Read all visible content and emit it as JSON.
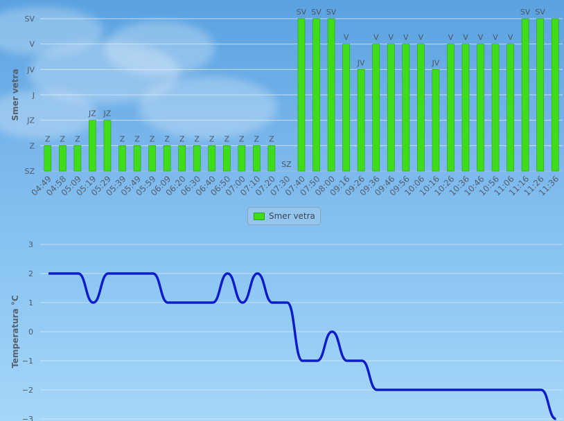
{
  "chart_data": [
    {
      "type": "bar",
      "ylabel": "Smer vetra",
      "y_categories": [
        "SZ",
        "Z",
        "JZ",
        "J",
        "JV",
        "V",
        "SV"
      ],
      "categories": [
        "04:49",
        "04:58",
        "05:09",
        "05:19",
        "05:29",
        "05:39",
        "05:49",
        "05:59",
        "06:09",
        "06:20",
        "06:30",
        "06:40",
        "06:50",
        "07:00",
        "07:10",
        "07:20",
        "07:30",
        "07:40",
        "07:50",
        "08:00",
        "09:16",
        "09:26",
        "09:36",
        "09:46",
        "09:56",
        "10:06",
        "10:16",
        "10:26",
        "10:36",
        "10:46",
        "10:56",
        "11:06",
        "11:16",
        "11:26",
        "11:36"
      ],
      "values": [
        "Z",
        "Z",
        "Z",
        "JZ",
        "JZ",
        "Z",
        "Z",
        "Z",
        "Z",
        "Z",
        "Z",
        "Z",
        "Z",
        "Z",
        "Z",
        "Z",
        "SZ",
        "SV",
        "SV",
        "SV",
        "V",
        "JV",
        "V",
        "V",
        "V",
        "V",
        "JV",
        "V",
        "V",
        "V",
        "V",
        "V",
        "SV",
        "SV",
        "SV"
      ],
      "data_labels": [
        "Z",
        "Z",
        "Z",
        "JZ",
        "JZ",
        "Z",
        "Z",
        "Z",
        "Z",
        "Z",
        "Z",
        "Z",
        "Z",
        "Z",
        "Z",
        "Z",
        "SZ",
        "SV",
        "SV",
        "SV",
        "V",
        "JV",
        "V",
        "V",
        "V",
        "V",
        "JV",
        "V",
        "V",
        "V",
        "V",
        "V",
        "SV",
        "SV",
        ""
      ],
      "legend": [
        "Smer vetra"
      ],
      "legend_position": "bottom-center",
      "bar_color": "#3fdc1a",
      "grid": true
    },
    {
      "type": "line",
      "ylabel": "Temperatura °C",
      "y_ticks": [
        "3",
        "2",
        "1",
        "0",
        "−1",
        "−2",
        "−3"
      ],
      "ylim": [
        -3,
        3
      ],
      "categories": [
        "04:49",
        "04:58",
        "05:09",
        "05:19",
        "05:29",
        "05:39",
        "05:49",
        "05:59",
        "06:09",
        "06:20",
        "06:30",
        "06:40",
        "06:50",
        "07:00",
        "07:10",
        "07:20",
        "07:30",
        "07:40",
        "07:50",
        "08:00",
        "09:16",
        "09:26",
        "09:36",
        "09:46",
        "09:56",
        "10:06",
        "10:16",
        "10:26",
        "10:36",
        "10:46",
        "10:56",
        "11:06",
        "11:16",
        "11:26",
        "11:36"
      ],
      "values": [
        2,
        2,
        2,
        1,
        2,
        2,
        2,
        2,
        1,
        1,
        1,
        1,
        2,
        1,
        2,
        1,
        1,
        -1,
        -1,
        0,
        -1,
        -1,
        -2,
        -2,
        -2,
        -2,
        -2,
        -2,
        -2,
        -2,
        -2,
        -2,
        -2,
        -2,
        -3
      ],
      "line_color": "#0c1cc8",
      "grid": true
    }
  ]
}
